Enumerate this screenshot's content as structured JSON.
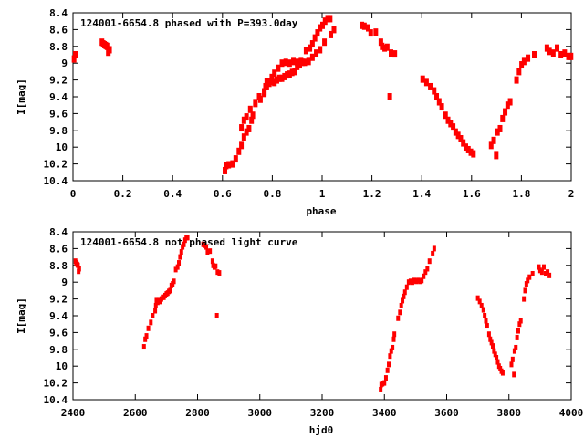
{
  "colors": {
    "points": "#ff0000",
    "axes": "#000000"
  },
  "chart_data": [
    {
      "type": "scatter",
      "title": "124001-6654.8 phased with P=393.0day",
      "period": 393.0,
      "xlabel": "phase",
      "ylabel": "I[mag]",
      "xlim": [
        0,
        2
      ],
      "ylim": [
        10.4,
        8.4
      ],
      "y_inverted": true,
      "xticks": [
        "0",
        "0.2",
        "0.4",
        "0.6",
        "0.8",
        "1",
        "1.2",
        "1.4",
        "1.6",
        "1.8",
        "2"
      ],
      "yticks": [
        "8.4",
        "8.6",
        "8.8",
        "9",
        "9.2",
        "9.4",
        "9.6",
        "9.8",
        "10",
        "10.2",
        "10.4"
      ],
      "series_source": "phased from hjd series of second chart"
    },
    {
      "type": "scatter",
      "title": "124001-6654.8 not phased light curve",
      "xlabel": "hjd0",
      "ylabel": "I[mag]",
      "xlim": [
        2400,
        4000
      ],
      "ylim": [
        10.4,
        8.4
      ],
      "y_inverted": true,
      "xticks": [
        "2400",
        "2600",
        "2800",
        "3000",
        "3200",
        "3400",
        "3600",
        "3800",
        "4000"
      ],
      "yticks": [
        "8.4",
        "8.6",
        "8.8",
        "9",
        "9.2",
        "9.4",
        "9.6",
        "9.8",
        "10",
        "10.2",
        "10.4"
      ],
      "points": [
        [
          2362,
          8.92
        ],
        [
          2364,
          8.95
        ],
        [
          2366,
          8.9
        ],
        [
          2408,
          8.75
        ],
        [
          2410,
          8.77
        ],
        [
          2412,
          8.78
        ],
        [
          2414,
          8.79
        ],
        [
          2416,
          8.8
        ],
        [
          2418,
          8.87
        ],
        [
          2420,
          8.84
        ],
        [
          2628,
          9.77
        ],
        [
          2632,
          9.68
        ],
        [
          2636,
          9.64
        ],
        [
          2642,
          9.55
        ],
        [
          2650,
          9.48
        ],
        [
          2656,
          9.4
        ],
        [
          2664,
          9.34
        ],
        [
          2666,
          9.28
        ],
        [
          2668,
          9.22
        ],
        [
          2672,
          9.24
        ],
        [
          2676,
          9.22
        ],
        [
          2680,
          9.23
        ],
        [
          2684,
          9.2
        ],
        [
          2688,
          9.18
        ],
        [
          2692,
          9.18
        ],
        [
          2696,
          9.16
        ],
        [
          2700,
          9.14
        ],
        [
          2704,
          9.13
        ],
        [
          2708,
          9.11
        ],
        [
          2712,
          9.1
        ],
        [
          2716,
          9.04
        ],
        [
          2720,
          9.02
        ],
        [
          2724,
          8.99
        ],
        [
          2730,
          8.85
        ],
        [
          2736,
          8.82
        ],
        [
          2740,
          8.77
        ],
        [
          2744,
          8.7
        ],
        [
          2748,
          8.64
        ],
        [
          2752,
          8.58
        ],
        [
          2756,
          8.55
        ],
        [
          2760,
          8.5
        ],
        [
          2764,
          8.47
        ],
        [
          2768,
          8.47
        ],
        [
          2818,
          8.55
        ],
        [
          2822,
          8.56
        ],
        [
          2828,
          8.58
        ],
        [
          2832,
          8.64
        ],
        [
          2840,
          8.63
        ],
        [
          2848,
          8.75
        ],
        [
          2850,
          8.8
        ],
        [
          2854,
          8.82
        ],
        [
          2858,
          8.81
        ],
        [
          2862,
          9.4
        ],
        [
          2864,
          8.88
        ],
        [
          2870,
          8.89
        ],
        [
          3388,
          10.28
        ],
        [
          3390,
          10.22
        ],
        [
          3394,
          10.21
        ],
        [
          3400,
          10.2
        ],
        [
          3405,
          10.14
        ],
        [
          3410,
          10.05
        ],
        [
          3414,
          9.98
        ],
        [
          3418,
          9.88
        ],
        [
          3422,
          9.82
        ],
        [
          3426,
          9.78
        ],
        [
          3430,
          9.68
        ],
        [
          3432,
          9.62
        ],
        [
          3444,
          9.43
        ],
        [
          3450,
          9.36
        ],
        [
          3454,
          9.28
        ],
        [
          3458,
          9.22
        ],
        [
          3462,
          9.17
        ],
        [
          3466,
          9.12
        ],
        [
          3472,
          9.06
        ],
        [
          3478,
          9.0
        ],
        [
          3484,
          8.99
        ],
        [
          3490,
          9.0
        ],
        [
          3496,
          8.98
        ],
        [
          3502,
          8.99
        ],
        [
          3508,
          8.98
        ],
        [
          3514,
          8.99
        ],
        [
          3520,
          8.98
        ],
        [
          3526,
          8.93
        ],
        [
          3532,
          8.88
        ],
        [
          3538,
          8.84
        ],
        [
          3545,
          8.75
        ],
        [
          3555,
          8.66
        ],
        [
          3560,
          8.6
        ],
        [
          3700,
          9.19
        ],
        [
          3706,
          9.23
        ],
        [
          3712,
          9.28
        ],
        [
          3718,
          9.33
        ],
        [
          3722,
          9.4
        ],
        [
          3726,
          9.46
        ],
        [
          3730,
          9.52
        ],
        [
          3736,
          9.62
        ],
        [
          3740,
          9.68
        ],
        [
          3744,
          9.72
        ],
        [
          3748,
          9.76
        ],
        [
          3752,
          9.82
        ],
        [
          3756,
          9.86
        ],
        [
          3760,
          9.9
        ],
        [
          3764,
          9.95
        ],
        [
          3768,
          10.0
        ],
        [
          3772,
          10.03
        ],
        [
          3776,
          10.06
        ],
        [
          3780,
          10.08
        ],
        [
          3808,
          9.98
        ],
        [
          3812,
          9.92
        ],
        [
          3816,
          10.1
        ],
        [
          3818,
          9.82
        ],
        [
          3822,
          9.78
        ],
        [
          3826,
          9.66
        ],
        [
          3830,
          9.58
        ],
        [
          3834,
          9.5
        ],
        [
          3838,
          9.46
        ],
        [
          3848,
          9.2
        ],
        [
          3852,
          9.1
        ],
        [
          3856,
          9.02
        ],
        [
          3860,
          8.98
        ],
        [
          3866,
          8.94
        ],
        [
          3876,
          8.9
        ],
        [
          3896,
          8.82
        ],
        [
          3900,
          8.86
        ],
        [
          3906,
          8.88
        ],
        [
          3912,
          8.82
        ],
        [
          3918,
          8.9
        ],
        [
          3924,
          8.88
        ],
        [
          3930,
          8.92
        ]
      ]
    }
  ]
}
